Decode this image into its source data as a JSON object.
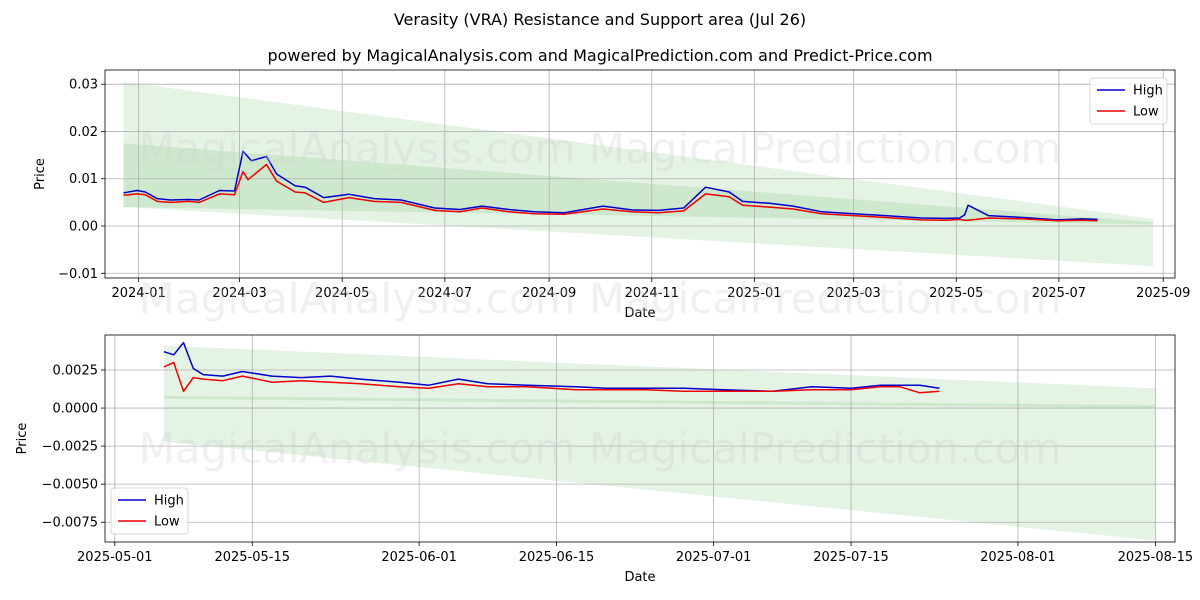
{
  "title": "Verasity (VRA) Resistance and Support area (Jul 26)",
  "subtitle": "powered by MagicalAnalysis.com and MagicalPrediction.com and Predict-Price.com",
  "watermark": "MagicalAnalysis.com    MagicalPrediction.com",
  "colors": {
    "high": "#0000cc",
    "low": "#ee0000",
    "band": "#2ca02c"
  },
  "chart_data": [
    {
      "type": "line",
      "xlabel": "Date",
      "ylabel": "Price",
      "xlim": [
        "2023-12-12",
        "2025-09-08"
      ],
      "ylim": [
        -0.011,
        0.033
      ],
      "xticks": [
        "2024-01-01",
        "2024-03-01",
        "2024-05-01",
        "2024-07-01",
        "2024-09-01",
        "2024-11-01",
        "2025-01-01",
        "2025-03-01",
        "2025-05-01",
        "2025-07-01",
        "2025-09-01"
      ],
      "xtick_labels": [
        "2024-01",
        "2024-03",
        "2024-05",
        "2024-07",
        "2024-09",
        "2024-11",
        "2025-01",
        "2025-03",
        "2025-05",
        "2025-07",
        "2025-09"
      ],
      "yticks": [
        -0.01,
        0.0,
        0.01,
        0.02,
        0.03
      ],
      "ytick_labels": [
        "−0.01",
        "0.00",
        "0.01",
        "0.02",
        "0.03"
      ],
      "legend": "top-right",
      "grid": true,
      "bands": [
        {
          "x": [
            "2023-12-23",
            "2025-08-26"
          ],
          "upper": [
            0.0305,
            0.0015
          ],
          "lower": [
            0.004,
            -0.0085
          ]
        },
        {
          "x": [
            "2023-12-23",
            "2025-08-26"
          ],
          "upper": [
            0.0175,
            0.0008
          ],
          "lower": [
            0.004,
            0.0003
          ]
        }
      ],
      "series": [
        {
          "name": "High",
          "x": [
            "2023-12-23",
            "2023-12-31",
            "2024-01-05",
            "2024-01-12",
            "2024-01-20",
            "2024-01-31",
            "2024-02-06",
            "2024-02-18",
            "2024-02-27",
            "2024-03-03",
            "2024-03-08",
            "2024-03-17",
            "2024-03-23",
            "2024-04-03",
            "2024-04-09",
            "2024-04-20",
            "2024-05-05",
            "2024-05-20",
            "2024-06-05",
            "2024-06-25",
            "2024-07-10",
            "2024-07-23",
            "2024-08-08",
            "2024-08-23",
            "2024-09-10",
            "2024-10-03",
            "2024-10-20",
            "2024-11-05",
            "2024-11-20",
            "2024-12-03",
            "2024-12-17",
            "2024-12-25",
            "2025-01-10",
            "2025-01-24",
            "2025-02-10",
            "2025-03-01",
            "2025-03-20",
            "2025-04-10",
            "2025-04-25",
            "2025-05-03",
            "2025-05-06",
            "2025-05-08",
            "2025-05-20",
            "2025-06-10",
            "2025-06-30",
            "2025-07-15",
            "2025-07-24"
          ],
          "y": [
            0.007,
            0.0075,
            0.0072,
            0.0058,
            0.0055,
            0.0056,
            0.0055,
            0.0075,
            0.0074,
            0.0158,
            0.0138,
            0.0147,
            0.011,
            0.0085,
            0.0082,
            0.006,
            0.0067,
            0.0058,
            0.0055,
            0.0038,
            0.0035,
            0.0042,
            0.0035,
            0.003,
            0.0028,
            0.0042,
            0.0034,
            0.0033,
            0.0038,
            0.0082,
            0.0072,
            0.0052,
            0.0048,
            0.0042,
            0.003,
            0.0026,
            0.0022,
            0.0017,
            0.0016,
            0.0017,
            0.0024,
            0.0044,
            0.0022,
            0.0018,
            0.0013,
            0.0015,
            0.0014
          ]
        },
        {
          "name": "Low",
          "x": [
            "2023-12-23",
            "2023-12-31",
            "2024-01-05",
            "2024-01-12",
            "2024-01-20",
            "2024-01-31",
            "2024-02-06",
            "2024-02-18",
            "2024-02-27",
            "2024-03-03",
            "2024-03-06",
            "2024-03-17",
            "2024-03-23",
            "2024-04-03",
            "2024-04-09",
            "2024-04-20",
            "2024-05-05",
            "2024-05-20",
            "2024-06-05",
            "2024-06-25",
            "2024-07-10",
            "2024-07-23",
            "2024-08-08",
            "2024-08-23",
            "2024-09-10",
            "2024-10-03",
            "2024-10-20",
            "2024-11-05",
            "2024-11-20",
            "2024-12-03",
            "2024-12-17",
            "2024-12-25",
            "2025-01-10",
            "2025-01-24",
            "2025-02-10",
            "2025-03-01",
            "2025-03-20",
            "2025-04-10",
            "2025-04-25",
            "2025-05-03",
            "2025-05-06",
            "2025-05-08",
            "2025-05-20",
            "2025-06-10",
            "2025-06-30",
            "2025-07-15",
            "2025-07-24"
          ],
          "y": [
            0.0065,
            0.0068,
            0.0066,
            0.0052,
            0.005,
            0.0052,
            0.005,
            0.0068,
            0.0066,
            0.0115,
            0.0098,
            0.013,
            0.0095,
            0.0072,
            0.007,
            0.005,
            0.006,
            0.0052,
            0.005,
            0.0033,
            0.003,
            0.0038,
            0.003,
            0.0026,
            0.0025,
            0.0036,
            0.003,
            0.0028,
            0.0032,
            0.0068,
            0.0062,
            0.0044,
            0.004,
            0.0036,
            0.0026,
            0.0022,
            0.0018,
            0.0013,
            0.0012,
            0.0014,
            0.0012,
            0.0012,
            0.0017,
            0.0015,
            0.0011,
            0.0012,
            0.0011
          ]
        }
      ]
    },
    {
      "type": "line",
      "xlabel": "Date",
      "ylabel": "Price",
      "xlim": [
        "2025-04-30",
        "2025-08-17"
      ],
      "ylim": [
        -0.0088,
        0.0048
      ],
      "xticks": [
        "2025-05-01",
        "2025-05-15",
        "2025-06-01",
        "2025-06-15",
        "2025-07-01",
        "2025-07-15",
        "2025-08-01",
        "2025-08-15"
      ],
      "xtick_labels": [
        "2025-05-01",
        "2025-05-15",
        "2025-06-01",
        "2025-06-15",
        "2025-07-01",
        "2025-07-15",
        "2025-08-01",
        "2025-08-15"
      ],
      "yticks": [
        -0.0075,
        -0.005,
        -0.0025,
        0.0,
        0.0025
      ],
      "ytick_labels": [
        "−0.0075",
        "−0.0050",
        "−0.0025",
        "0.0000",
        "0.0025"
      ],
      "legend": "bottom-left",
      "grid": true,
      "bands": [
        {
          "x": [
            "2025-05-06",
            "2025-08-15"
          ],
          "upper": [
            0.0041,
            0.0013
          ],
          "lower": [
            -0.0022,
            -0.0087
          ]
        },
        {
          "x": [
            "2025-05-06",
            "2025-08-15"
          ],
          "upper": [
            0.0008,
            0.0002
          ],
          "lower": [
            0.0006,
            0.0
          ]
        }
      ],
      "series": [
        {
          "name": "High",
          "x": [
            "2025-05-06",
            "2025-05-07",
            "2025-05-08",
            "2025-05-09",
            "2025-05-10",
            "2025-05-12",
            "2025-05-14",
            "2025-05-17",
            "2025-05-20",
            "2025-05-23",
            "2025-05-26",
            "2025-05-30",
            "2025-06-02",
            "2025-06-05",
            "2025-06-08",
            "2025-06-12",
            "2025-06-17",
            "2025-06-20",
            "2025-06-24",
            "2025-06-28",
            "2025-07-02",
            "2025-07-07",
            "2025-07-11",
            "2025-07-15",
            "2025-07-18",
            "2025-07-20",
            "2025-07-22",
            "2025-07-24"
          ],
          "y": [
            0.0037,
            0.0035,
            0.0043,
            0.0026,
            0.0022,
            0.0021,
            0.0024,
            0.0021,
            0.002,
            0.0021,
            0.0019,
            0.0017,
            0.0015,
            0.0019,
            0.0016,
            0.0015,
            0.0014,
            0.0013,
            0.0013,
            0.0013,
            0.0012,
            0.0011,
            0.0014,
            0.0013,
            0.0015,
            0.0015,
            0.0015,
            0.0013
          ]
        },
        {
          "name": "Low",
          "x": [
            "2025-05-06",
            "2025-05-07",
            "2025-05-08",
            "2025-05-09",
            "2025-05-10",
            "2025-05-12",
            "2025-05-14",
            "2025-05-17",
            "2025-05-20",
            "2025-05-23",
            "2025-05-26",
            "2025-05-30",
            "2025-06-02",
            "2025-06-05",
            "2025-06-08",
            "2025-06-12",
            "2025-06-17",
            "2025-06-20",
            "2025-06-24",
            "2025-06-28",
            "2025-07-02",
            "2025-07-07",
            "2025-07-11",
            "2025-07-15",
            "2025-07-18",
            "2025-07-20",
            "2025-07-22",
            "2025-07-24"
          ],
          "y": [
            0.0027,
            0.003,
            0.0011,
            0.002,
            0.0019,
            0.0018,
            0.0021,
            0.0017,
            0.0018,
            0.0017,
            0.0016,
            0.0014,
            0.0013,
            0.0016,
            0.0014,
            0.0014,
            0.0012,
            0.0012,
            0.0012,
            0.0011,
            0.0011,
            0.0011,
            0.0012,
            0.0012,
            0.0014,
            0.0014,
            0.001,
            0.0011
          ]
        }
      ]
    }
  ]
}
